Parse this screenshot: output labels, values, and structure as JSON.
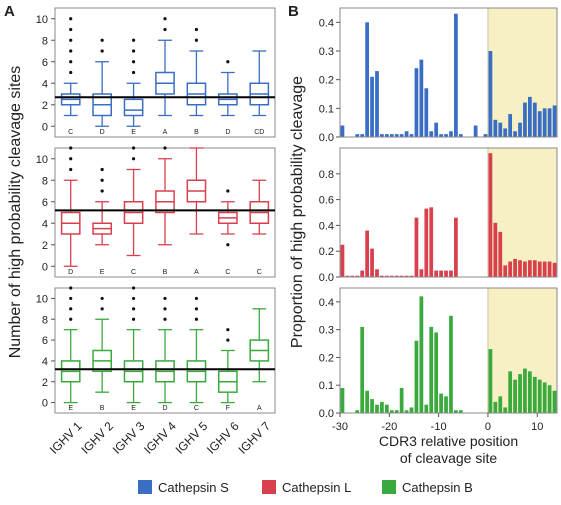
{
  "panel_labels": [
    "A",
    "B"
  ],
  "colors": {
    "blue": "#3a6ec4",
    "red": "#d8404e",
    "green": "#3aaa3e",
    "shade": "#f7f0c4",
    "frame": "#888888"
  },
  "legend": [
    {
      "label": "Cathepsin S",
      "color": "#3a6ec4"
    },
    {
      "label": "Cathepsin L",
      "color": "#d8404e"
    },
    {
      "label": "Cathepsin B",
      "color": "#3aaa3e"
    }
  ],
  "chart_data": [
    {
      "type": "box",
      "panel": "A",
      "ylabel": "Number of  high probability  cleavage sites",
      "categories": [
        "IGHV 1",
        "IGHV 2",
        "IGHV 3",
        "IGHV 4",
        "IGHV 5",
        "IGHV 6",
        "IGHV 7"
      ],
      "ylim": [
        -1,
        11
      ],
      "yticks": [
        0,
        2,
        4,
        6,
        8,
        10
      ],
      "series": [
        {
          "name": "Cathepsin S",
          "color": "#3a6ec4",
          "reference_line": 2.7,
          "boxes": [
            {
              "whisker_low": 1,
              "q1": 2,
              "median": 2.5,
              "q3": 3,
              "whisker_high": 4,
              "outliers": [
                5,
                6,
                7,
                8,
                9,
                10
              ],
              "group": "C"
            },
            {
              "whisker_low": 0,
              "q1": 1,
              "median": 2,
              "q3": 3,
              "whisker_high": 6,
              "outliers": [
                7,
                8
              ],
              "group": "D"
            },
            {
              "whisker_low": 0,
              "q1": 1,
              "median": 1.5,
              "q3": 2.5,
              "whisker_high": 4,
              "outliers": [
                5,
                6,
                7,
                8
              ],
              "group": "E"
            },
            {
              "whisker_low": 1,
              "q1": 3,
              "median": 4,
              "q3": 5,
              "whisker_high": 8,
              "outliers": [
                9,
                10
              ],
              "group": "A"
            },
            {
              "whisker_low": 1,
              "q1": 2,
              "median": 3,
              "q3": 4,
              "whisker_high": 7,
              "outliers": [
                8,
                9
              ],
              "group": "B"
            },
            {
              "whisker_low": 1,
              "q1": 2,
              "median": 2.5,
              "q3": 3,
              "whisker_high": 5,
              "outliers": [
                6
              ],
              "group": "D"
            },
            {
              "whisker_low": 1,
              "q1": 2,
              "median": 3,
              "q3": 4,
              "whisker_high": 7,
              "outliers": [],
              "group": "CD"
            }
          ]
        },
        {
          "name": "Cathepsin L",
          "color": "#d8404e",
          "reference_line": 5.2,
          "boxes": [
            {
              "whisker_low": 0,
              "q1": 3,
              "median": 4,
              "q3": 5,
              "whisker_high": 8,
              "outliers": [
                9,
                10,
                11
              ],
              "group": "D"
            },
            {
              "whisker_low": 2,
              "q1": 3,
              "median": 3.5,
              "q3": 4,
              "whisker_high": 6,
              "outliers": [
                7,
                8,
                9
              ],
              "group": "E"
            },
            {
              "whisker_low": 1,
              "q1": 4,
              "median": 5,
              "q3": 6,
              "whisker_high": 9,
              "outliers": [
                10,
                11
              ],
              "group": "C"
            },
            {
              "whisker_low": 2,
              "q1": 5,
              "median": 6,
              "q3": 7,
              "whisker_high": 10,
              "outliers": [
                11
              ],
              "group": "B"
            },
            {
              "whisker_low": 3,
              "q1": 6,
              "median": 7,
              "q3": 8,
              "whisker_high": 11,
              "outliers": [],
              "group": "A"
            },
            {
              "whisker_low": 3,
              "q1": 4,
              "median": 4.5,
              "q3": 5,
              "whisker_high": 6,
              "outliers": [
                2,
                7
              ],
              "group": "C"
            },
            {
              "whisker_low": 3,
              "q1": 4,
              "median": 5,
              "q3": 6,
              "whisker_high": 8,
              "outliers": [],
              "group": "C"
            }
          ]
        },
        {
          "name": "Cathepsin B",
          "color": "#3aaa3e",
          "reference_line": 3.2,
          "boxes": [
            {
              "whisker_low": 0,
              "q1": 2,
              "median": 3,
              "q3": 4,
              "whisker_high": 7,
              "outliers": [
                8,
                9,
                10,
                11
              ],
              "group": "E"
            },
            {
              "whisker_low": 1,
              "q1": 3,
              "median": 4,
              "q3": 5,
              "whisker_high": 8,
              "outliers": [
                9,
                10
              ],
              "group": "B"
            },
            {
              "whisker_low": 0,
              "q1": 2,
              "median": 3,
              "q3": 4,
              "whisker_high": 7,
              "outliers": [
                8,
                9,
                10,
                11
              ],
              "group": "E"
            },
            {
              "whisker_low": 0,
              "q1": 2,
              "median": 3,
              "q3": 4,
              "whisker_high": 7,
              "outliers": [
                8,
                9,
                10
              ],
              "group": "D"
            },
            {
              "whisker_low": 0,
              "q1": 2,
              "median": 3,
              "q3": 4,
              "whisker_high": 7,
              "outliers": [
                8,
                9,
                10
              ],
              "group": "C"
            },
            {
              "whisker_low": 0,
              "q1": 1,
              "median": 2,
              "q3": 3,
              "whisker_high": 5,
              "outliers": [
                6,
                7
              ],
              "group": "F"
            },
            {
              "whisker_low": 2,
              "q1": 4,
              "median": 5,
              "q3": 6,
              "whisker_high": 9,
              "outliers": [],
              "group": "A"
            }
          ]
        }
      ]
    },
    {
      "type": "bar",
      "panel": "B",
      "xlabel": "CDR3 relative position of cleavage site",
      "ylabel": "Proportion of  high probability  cleavage",
      "xlim": [
        -30,
        14
      ],
      "xticks": [
        -30,
        -20,
        -10,
        0,
        10
      ],
      "highlight_region": [
        0,
        14
      ],
      "x": [
        -30,
        -29,
        -28,
        -27,
        -26,
        -25,
        -24,
        -23,
        -22,
        -21,
        -20,
        -19,
        -18,
        -17,
        -16,
        -15,
        -14,
        -13,
        -12,
        -11,
        -10,
        -9,
        -8,
        -7,
        -6,
        -5,
        -4,
        -3,
        -2,
        -1,
        0,
        1,
        2,
        3,
        4,
        5,
        6,
        7,
        8,
        9,
        10,
        11,
        12,
        13
      ],
      "series": [
        {
          "name": "Cathepsin S",
          "color": "#3a6ec4",
          "ylim": [
            0,
            0.45
          ],
          "yticks": [
            0,
            0.1,
            0.2,
            0.3,
            0.4
          ],
          "values": [
            0.04,
            0,
            0,
            0.01,
            0.01,
            0.4,
            0.21,
            0.23,
            0.01,
            0.01,
            0.01,
            0.01,
            0.01,
            0.02,
            0.01,
            0.24,
            0.27,
            0.17,
            0.02,
            0.05,
            0.01,
            0.01,
            0.02,
            0.43,
            0.01,
            0,
            0,
            0.04,
            0,
            0.01,
            0.3,
            0.06,
            0.05,
            0.03,
            0.08,
            0.02,
            0.05,
            0.12,
            0.14,
            0.12,
            0.09,
            0.1,
            0.1,
            0.11
          ]
        },
        {
          "name": "Cathepsin L",
          "color": "#d8404e",
          "ylim": [
            0,
            1.0
          ],
          "yticks": [
            0,
            0.2,
            0.4,
            0.6,
            0.8
          ],
          "values": [
            0.25,
            0.01,
            0.01,
            0.01,
            0.05,
            0.36,
            0.22,
            0.06,
            0.01,
            0.01,
            0.01,
            0.01,
            0.01,
            0.01,
            0.01,
            0.46,
            0.06,
            0.53,
            0.54,
            0.05,
            0.05,
            0.05,
            0.05,
            0.46,
            0,
            0,
            0,
            0,
            0,
            0,
            0.96,
            0.42,
            0.35,
            0.09,
            0.12,
            0.14,
            0.13,
            0.12,
            0.13,
            0.13,
            0.12,
            0.12,
            0.12,
            0.11
          ]
        },
        {
          "name": "Cathepsin B",
          "color": "#3aaa3e",
          "ylim": [
            0,
            0.45
          ],
          "yticks": [
            0,
            0.1,
            0.2,
            0.3,
            0.4
          ],
          "values": [
            0.09,
            0,
            0,
            0.01,
            0.31,
            0.08,
            0.05,
            0.03,
            0.04,
            0.03,
            0.01,
            0.01,
            0.09,
            0.01,
            0.02,
            0.26,
            0.42,
            0.03,
            0.31,
            0.29,
            0.07,
            0.06,
            0.35,
            0.01,
            0.01,
            0,
            0,
            0,
            0,
            0,
            0.23,
            0.04,
            0.06,
            0.02,
            0.15,
            0.12,
            0.14,
            0.16,
            0.15,
            0.13,
            0.12,
            0.11,
            0.1,
            0.08
          ]
        }
      ]
    }
  ]
}
